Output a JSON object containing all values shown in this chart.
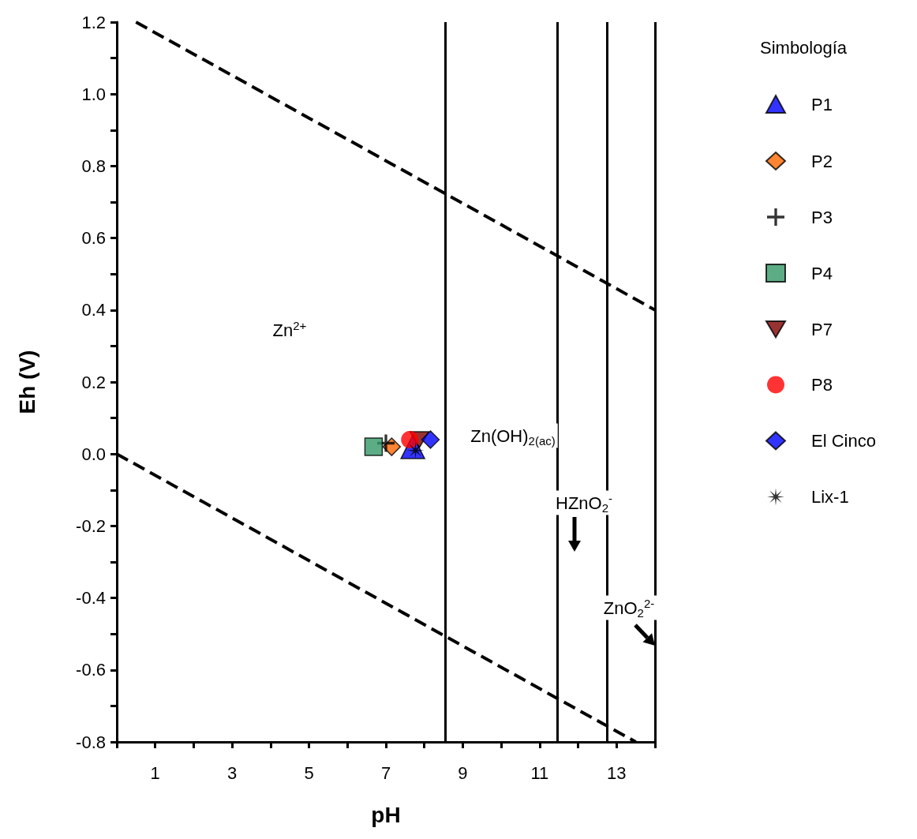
{
  "chart_data": {
    "type": "scatter",
    "xlabel": "pH",
    "ylabel": "Eh (V)",
    "legend_title": "Simbología",
    "legend": "right",
    "grid": false,
    "xlim": [
      0,
      14
    ],
    "ylim": [
      -0.8,
      1.2
    ],
    "xticks": [
      {
        "value": 0,
        "label": null
      },
      1,
      {
        "value": 2,
        "label": null
      },
      3,
      {
        "value": 4,
        "label": null
      },
      5,
      {
        "value": 6,
        "label": null
      },
      7,
      {
        "value": 8,
        "label": null
      },
      9,
      {
        "value": 10,
        "label": null
      },
      11,
      {
        "value": 12,
        "label": null
      },
      13,
      {
        "value": 14,
        "label": null
      }
    ],
    "yticks": [
      {
        "value": -0.8,
        "label": "-0.8"
      },
      {
        "value": -0.7,
        "label": null
      },
      -0.6,
      {
        "value": -0.5,
        "label": null
      },
      -0.4,
      {
        "value": -0.3,
        "label": null
      },
      -0.2,
      {
        "value": -0.1,
        "label": null
      },
      {
        "value": 0,
        "label": "0.0"
      },
      {
        "value": 0.1,
        "label": null
      },
      0.2,
      {
        "value": 0.3,
        "label": null
      },
      0.4,
      {
        "value": 0.5,
        "label": null
      },
      0.6,
      {
        "value": 0.7,
        "label": null
      },
      0.8,
      {
        "value": 0.9,
        "label": null
      },
      {
        "value": 1,
        "label": "1.0"
      },
      {
        "value": 1.1,
        "label": null
      },
      1.2
    ],
    "series": [
      {
        "name": "P1",
        "color": "#0000ff",
        "marker": "triangle",
        "x": [
          7.7
        ],
        "values": [
          0.02
        ]
      },
      {
        "name": "P2",
        "color": "#ff6600",
        "marker": "diamond",
        "x": [
          7.15
        ],
        "values": [
          0.02
        ]
      },
      {
        "name": "P3",
        "color": "#000000",
        "marker": "cross",
        "x": [
          7.0
        ],
        "values": [
          0.03
        ]
      },
      {
        "name": "P4",
        "color": "#339966",
        "marker": "square",
        "x": [
          6.68
        ],
        "values": [
          0.02
        ]
      },
      {
        "name": "P7",
        "color": "#800000",
        "marker": "triangle-down",
        "x": [
          7.87
        ],
        "values": [
          0.04
        ]
      },
      {
        "name": "P8",
        "color": "#ff0000",
        "marker": "circle",
        "x": [
          7.62
        ],
        "values": [
          0.04
        ]
      },
      {
        "name": "El Cinco",
        "color": "#0000ff",
        "marker": "diamond",
        "x": [
          8.16
        ],
        "values": [
          0.04
        ]
      },
      {
        "name": "Lix-1",
        "color": "#000000",
        "marker": "star",
        "x": [
          7.77
        ],
        "values": [
          0.01
        ]
      },
      {
        "type": "line",
        "color": "#000000",
        "line_style": "dashed",
        "marker": "none",
        "x": [
          0.5,
          14
        ],
        "values": [
          1.2,
          0.4
        ]
      },
      {
        "type": "line",
        "color": "#000000",
        "line_style": "dashed",
        "marker": "none",
        "x": [
          0,
          13.5
        ],
        "values": [
          0,
          -0.8
        ]
      }
    ],
    "ref_lines": [
      {
        "axis": "x",
        "value": 8.55,
        "color": "#000000"
      },
      {
        "axis": "x",
        "value": 11.45,
        "color": "#000000"
      },
      {
        "axis": "x",
        "value": 12.75,
        "color": "#000000"
      },
      {
        "axis": "x",
        "value": 14,
        "color": "#000000"
      }
    ],
    "annotations": [
      "Zn$^{2+}$",
      "Zn(OH)$_{2(ac)}$",
      "HZnO$_{2}$$^{-}$",
      "ZnO$_{2}$$^{2-}$"
    ]
  }
}
